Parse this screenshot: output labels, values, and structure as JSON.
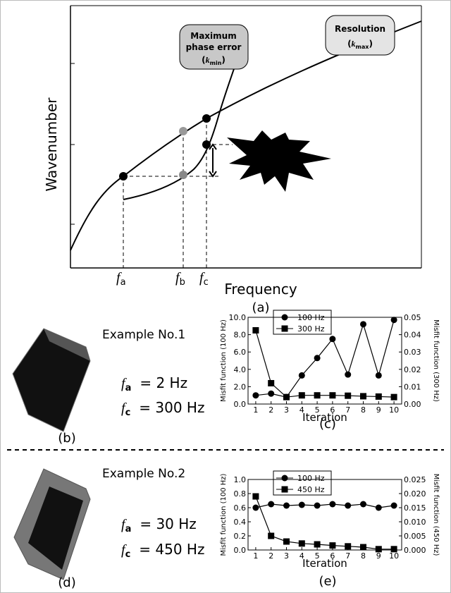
{
  "panel_a": {
    "callouts": [
      {
        "lines": [
          "Maximum",
          "phase error"
        ],
        "note": {
          "open": "(",
          "symbol": "k",
          "subscript": "min",
          "close": ")"
        }
      },
      {
        "lines": [
          "Resolution"
        ],
        "note": {
          "open": "(",
          "symbol": "k",
          "subscript": "max",
          "close": ")"
        }
      }
    ],
    "ylabel": "Wavenumber",
    "xlabel": "Frequency",
    "label": "(a)",
    "xmarks": [
      {
        "symbol": "f",
        "subscript": "a"
      },
      {
        "symbol": "f",
        "subscript": "b"
      },
      {
        "symbol": "f",
        "subscript": "c"
      }
    ]
  },
  "examples": [
    {
      "title": "Example No.1",
      "params": [
        {
          "symbol": "f",
          "subscript": "a",
          "value": "= 2 Hz"
        },
        {
          "symbol": "f",
          "subscript": "c",
          "value": "= 300 Hz"
        }
      ],
      "label": "(b)"
    },
    {
      "title": "Example No.2",
      "params": [
        {
          "symbol": "f",
          "subscript": "a",
          "value": "= 30 Hz"
        },
        {
          "symbol": "f",
          "subscript": "c",
          "value": "= 450 Hz"
        }
      ],
      "label": "(d)"
    }
  ],
  "chart_data": [
    {
      "type": "line",
      "panel_label": "(c)",
      "xlabel": "Iteration",
      "ylabel": "Misfit function (100 Hz)",
      "y2label": "Misfit function (300 Hz)",
      "x": [
        1,
        2,
        3,
        4,
        5,
        6,
        7,
        8,
        9,
        10
      ],
      "xlim": [
        0.5,
        10.5
      ],
      "xticks": [
        1,
        2,
        3,
        4,
        5,
        6,
        7,
        8,
        9,
        10
      ],
      "ylim": [
        0,
        10
      ],
      "yticks": [
        {
          "value": 0,
          "label": "0.0"
        },
        {
          "value": 2,
          "label": "2.0"
        },
        {
          "value": 4,
          "label": "4.0"
        },
        {
          "value": 6,
          "label": "6.0"
        },
        {
          "value": 8,
          "label": "8.0"
        },
        {
          "value": 10,
          "label": "10.0"
        }
      ],
      "y2lim": [
        0,
        0.05
      ],
      "y2ticks": [
        {
          "value": 0,
          "label": "0.00"
        },
        {
          "value": 0.01,
          "label": "0.01"
        },
        {
          "value": 0.02,
          "label": "0.02"
        },
        {
          "value": 0.03,
          "label": "0.03"
        },
        {
          "value": 0.04,
          "label": "0.04"
        },
        {
          "value": 0.05,
          "label": "0.05"
        }
      ],
      "series": [
        {
          "name": "100 Hz",
          "color": "#000000",
          "marker": "circle",
          "values": [
            1.0,
            1.2,
            0.8,
            3.3,
            5.3,
            7.5,
            3.4,
            9.2,
            3.3,
            9.7
          ]
        },
        {
          "name": "300 Hz",
          "color": "#000000",
          "marker": "square",
          "axis": "y2",
          "values": [
            0.0425,
            0.012,
            0.004,
            0.005,
            0.005,
            0.005,
            0.0048,
            0.0045,
            0.0043,
            0.004
          ]
        }
      ]
    },
    {
      "type": "line",
      "panel_label": "(e)",
      "xlabel": "Iteration",
      "ylabel": "Misfit function (100 Hz)",
      "y2label": "Misfit function (450 Hz)",
      "x": [
        1,
        2,
        3,
        4,
        5,
        6,
        7,
        8,
        9,
        10
      ],
      "xlim": [
        0.5,
        10.5
      ],
      "xticks": [
        1,
        2,
        3,
        4,
        5,
        6,
        7,
        8,
        9,
        10
      ],
      "ylim": [
        0,
        1
      ],
      "yticks": [
        {
          "value": 0,
          "label": "0.0"
        },
        {
          "value": 0.2,
          "label": "0.2"
        },
        {
          "value": 0.4,
          "label": "0.4"
        },
        {
          "value": 0.6,
          "label": "0.6"
        },
        {
          "value": 0.8,
          "label": "0.8"
        },
        {
          "value": 1,
          "label": "1.0"
        }
      ],
      "y2lim": [
        0,
        0.025
      ],
      "y2ticks": [
        {
          "value": 0,
          "label": "0.000"
        },
        {
          "value": 0.005,
          "label": "0.005"
        },
        {
          "value": 0.01,
          "label": "0.010"
        },
        {
          "value": 0.015,
          "label": "0.015"
        },
        {
          "value": 0.02,
          "label": "0.020"
        },
        {
          "value": 0.025,
          "label": "0.025"
        }
      ],
      "series": [
        {
          "name": "100 Hz",
          "color": "#000000",
          "marker": "circle",
          "values": [
            0.6,
            0.65,
            0.63,
            0.64,
            0.63,
            0.65,
            0.63,
            0.65,
            0.6,
            0.63
          ]
        },
        {
          "name": "450 Hz",
          "color": "#000000",
          "marker": "square",
          "axis": "y2",
          "values": [
            0.019,
            0.005,
            0.003,
            0.0023,
            0.002,
            0.0016,
            0.0013,
            0.001,
            0.0003,
            0.0003
          ]
        }
      ]
    }
  ]
}
